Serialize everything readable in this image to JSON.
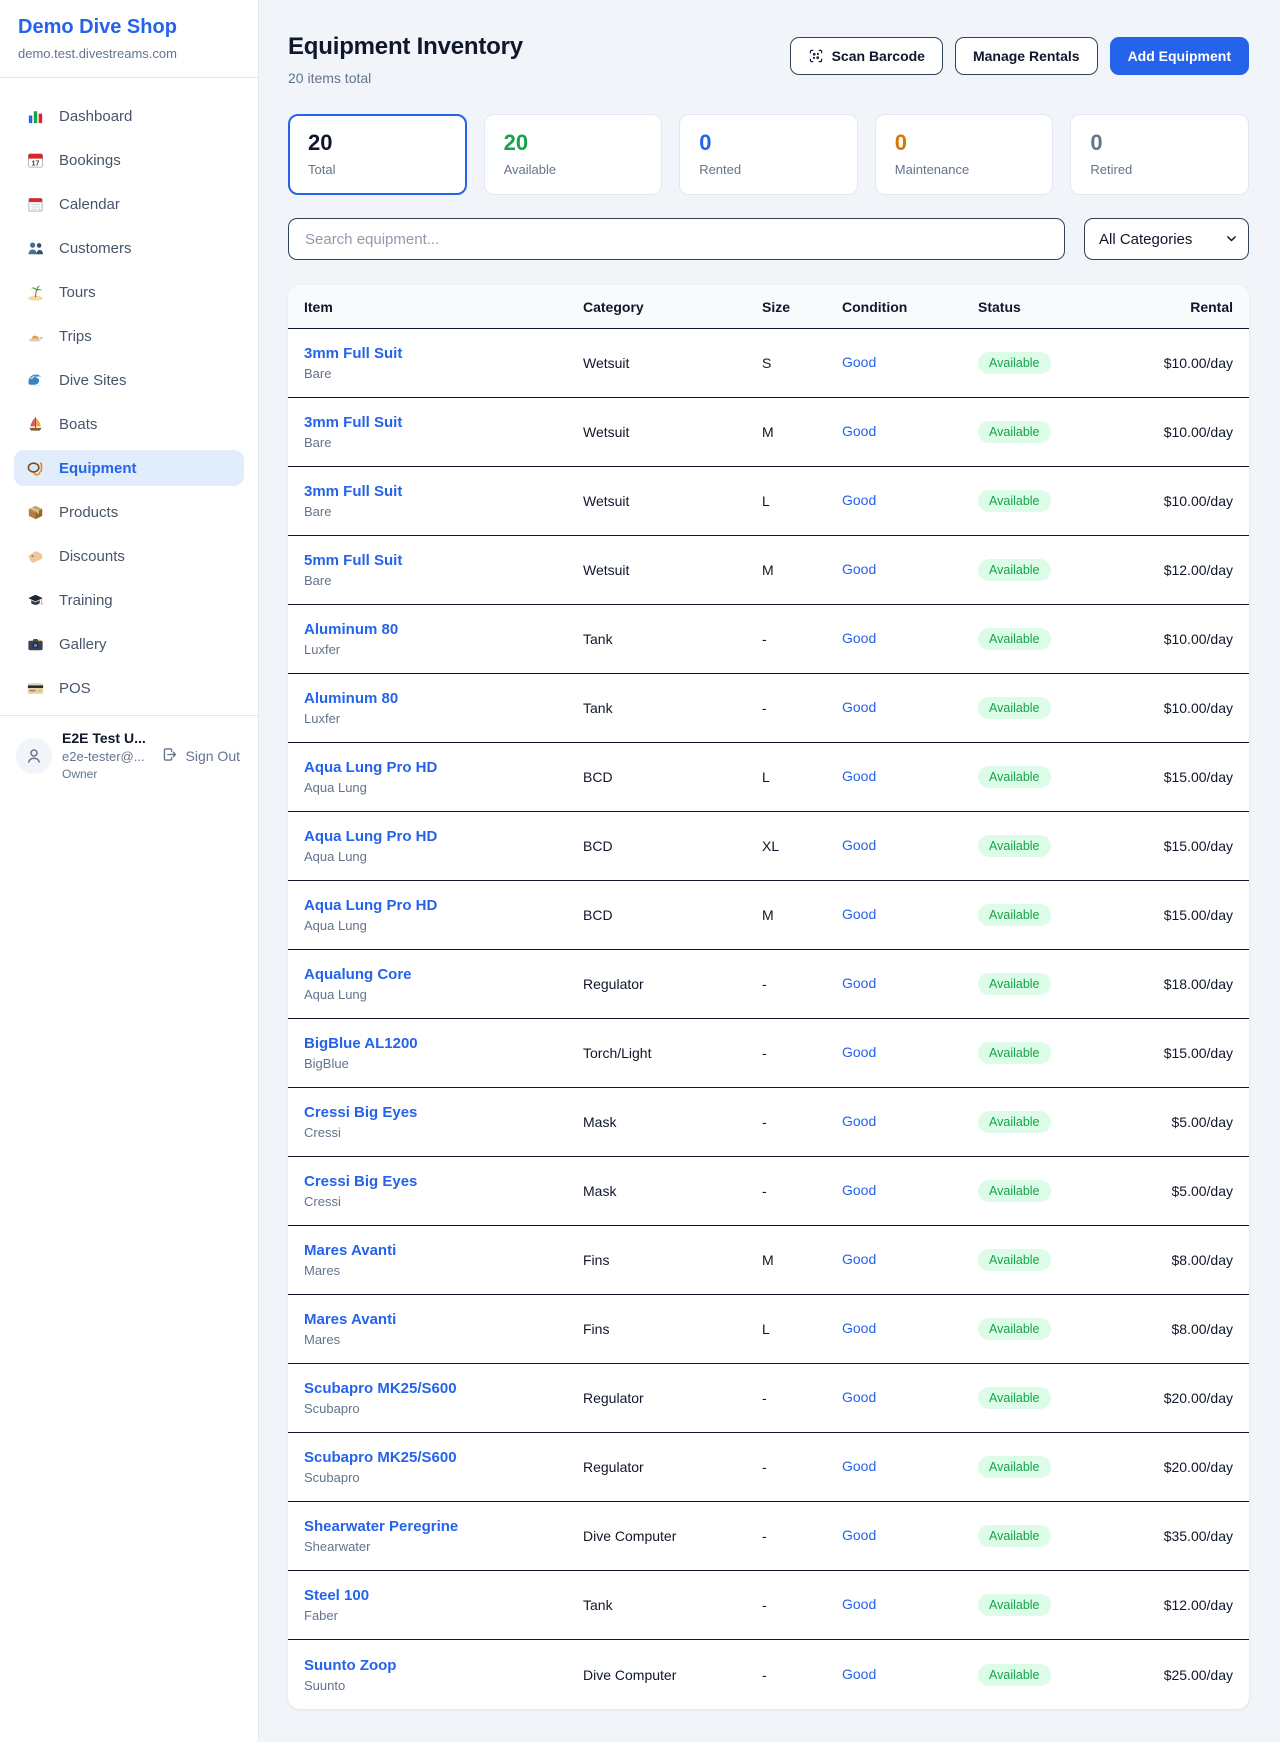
{
  "sidebar": {
    "brand": {
      "name": "Demo Dive Shop",
      "domain": "demo.test.divestreams.com"
    },
    "items": [
      {
        "label": "Dashboard",
        "icon": "bar-chart-icon",
        "active": false
      },
      {
        "label": "Bookings",
        "icon": "calendar-date-icon",
        "active": false
      },
      {
        "label": "Calendar",
        "icon": "calendar-icon",
        "active": false
      },
      {
        "label": "Customers",
        "icon": "users-icon",
        "active": false
      },
      {
        "label": "Tours",
        "icon": "palm-island-icon",
        "active": false
      },
      {
        "label": "Trips",
        "icon": "speedboat-icon",
        "active": false
      },
      {
        "label": "Dive Sites",
        "icon": "wave-icon",
        "active": false
      },
      {
        "label": "Boats",
        "icon": "sailboat-icon",
        "active": false
      },
      {
        "label": "Equipment",
        "icon": "diving-mask-icon",
        "active": true
      },
      {
        "label": "Products",
        "icon": "package-icon",
        "active": false
      },
      {
        "label": "Discounts",
        "icon": "label-tag-icon",
        "active": false
      },
      {
        "label": "Training",
        "icon": "graduation-cap-icon",
        "active": false
      },
      {
        "label": "Gallery",
        "icon": "camera-icon",
        "active": false
      },
      {
        "label": "POS",
        "icon": "credit-card-icon",
        "active": false
      }
    ],
    "user": {
      "name": "E2E Test U...",
      "email": "e2e-tester@...",
      "role": "Owner",
      "sign_out_label": "Sign Out"
    }
  },
  "header": {
    "title": "Equipment Inventory",
    "subtitle": "20 items total",
    "buttons": {
      "scan_barcode": "Scan Barcode",
      "manage_rentals": "Manage Rentals",
      "add_equipment": "Add Equipment"
    }
  },
  "stats": [
    {
      "value": "20",
      "label": "Total",
      "color": "#0f172a",
      "selected": true
    },
    {
      "value": "20",
      "label": "Available",
      "color": "#16a34a",
      "selected": false
    },
    {
      "value": "0",
      "label": "Rented",
      "color": "#2563eb",
      "selected": false
    },
    {
      "value": "0",
      "label": "Maintenance",
      "color": "#d97706",
      "selected": false
    },
    {
      "value": "0",
      "label": "Retired",
      "color": "#64748b",
      "selected": false
    }
  ],
  "filters": {
    "search_placeholder": "Search equipment...",
    "category_selected": "All Categories"
  },
  "table": {
    "columns": [
      "Item",
      "Category",
      "Size",
      "Condition",
      "Status",
      "Rental"
    ],
    "rows": [
      {
        "name": "3mm Full Suit",
        "brand": "Bare",
        "category": "Wetsuit",
        "size": "S",
        "condition": "Good",
        "status": "Available",
        "rental": "$10.00/day"
      },
      {
        "name": "3mm Full Suit",
        "brand": "Bare",
        "category": "Wetsuit",
        "size": "M",
        "condition": "Good",
        "status": "Available",
        "rental": "$10.00/day"
      },
      {
        "name": "3mm Full Suit",
        "brand": "Bare",
        "category": "Wetsuit",
        "size": "L",
        "condition": "Good",
        "status": "Available",
        "rental": "$10.00/day"
      },
      {
        "name": "5mm Full Suit",
        "brand": "Bare",
        "category": "Wetsuit",
        "size": "M",
        "condition": "Good",
        "status": "Available",
        "rental": "$12.00/day"
      },
      {
        "name": "Aluminum 80",
        "brand": "Luxfer",
        "category": "Tank",
        "size": "-",
        "condition": "Good",
        "status": "Available",
        "rental": "$10.00/day"
      },
      {
        "name": "Aluminum 80",
        "brand": "Luxfer",
        "category": "Tank",
        "size": "-",
        "condition": "Good",
        "status": "Available",
        "rental": "$10.00/day"
      },
      {
        "name": "Aqua Lung Pro HD",
        "brand": "Aqua Lung",
        "category": "BCD",
        "size": "L",
        "condition": "Good",
        "status": "Available",
        "rental": "$15.00/day"
      },
      {
        "name": "Aqua Lung Pro HD",
        "brand": "Aqua Lung",
        "category": "BCD",
        "size": "XL",
        "condition": "Good",
        "status": "Available",
        "rental": "$15.00/day"
      },
      {
        "name": "Aqua Lung Pro HD",
        "brand": "Aqua Lung",
        "category": "BCD",
        "size": "M",
        "condition": "Good",
        "status": "Available",
        "rental": "$15.00/day"
      },
      {
        "name": "Aqualung Core",
        "brand": "Aqua Lung",
        "category": "Regulator",
        "size": "-",
        "condition": "Good",
        "status": "Available",
        "rental": "$18.00/day"
      },
      {
        "name": "BigBlue AL1200",
        "brand": "BigBlue",
        "category": "Torch/Light",
        "size": "-",
        "condition": "Good",
        "status": "Available",
        "rental": "$15.00/day"
      },
      {
        "name": "Cressi Big Eyes",
        "brand": "Cressi",
        "category": "Mask",
        "size": "-",
        "condition": "Good",
        "status": "Available",
        "rental": "$5.00/day"
      },
      {
        "name": "Cressi Big Eyes",
        "brand": "Cressi",
        "category": "Mask",
        "size": "-",
        "condition": "Good",
        "status": "Available",
        "rental": "$5.00/day"
      },
      {
        "name": "Mares Avanti",
        "brand": "Mares",
        "category": "Fins",
        "size": "M",
        "condition": "Good",
        "status": "Available",
        "rental": "$8.00/day"
      },
      {
        "name": "Mares Avanti",
        "brand": "Mares",
        "category": "Fins",
        "size": "L",
        "condition": "Good",
        "status": "Available",
        "rental": "$8.00/day"
      },
      {
        "name": "Scubapro MK25/S600",
        "brand": "Scubapro",
        "category": "Regulator",
        "size": "-",
        "condition": "Good",
        "status": "Available",
        "rental": "$20.00/day"
      },
      {
        "name": "Scubapro MK25/S600",
        "brand": "Scubapro",
        "category": "Regulator",
        "size": "-",
        "condition": "Good",
        "status": "Available",
        "rental": "$20.00/day"
      },
      {
        "name": "Shearwater Peregrine",
        "brand": "Shearwater",
        "category": "Dive Computer",
        "size": "-",
        "condition": "Good",
        "status": "Available",
        "rental": "$35.00/day"
      },
      {
        "name": "Steel 100",
        "brand": "Faber",
        "category": "Tank",
        "size": "-",
        "condition": "Good",
        "status": "Available",
        "rental": "$12.00/day"
      },
      {
        "name": "Suunto Zoop",
        "brand": "Suunto",
        "category": "Dive Computer",
        "size": "-",
        "condition": "Good",
        "status": "Available",
        "rental": "$25.00/day"
      }
    ]
  },
  "colors": {
    "accent": "#2563eb",
    "available_badge_bg": "#dcfce7",
    "available_badge_text": "#16a34a",
    "maintenance": "#d97706"
  }
}
